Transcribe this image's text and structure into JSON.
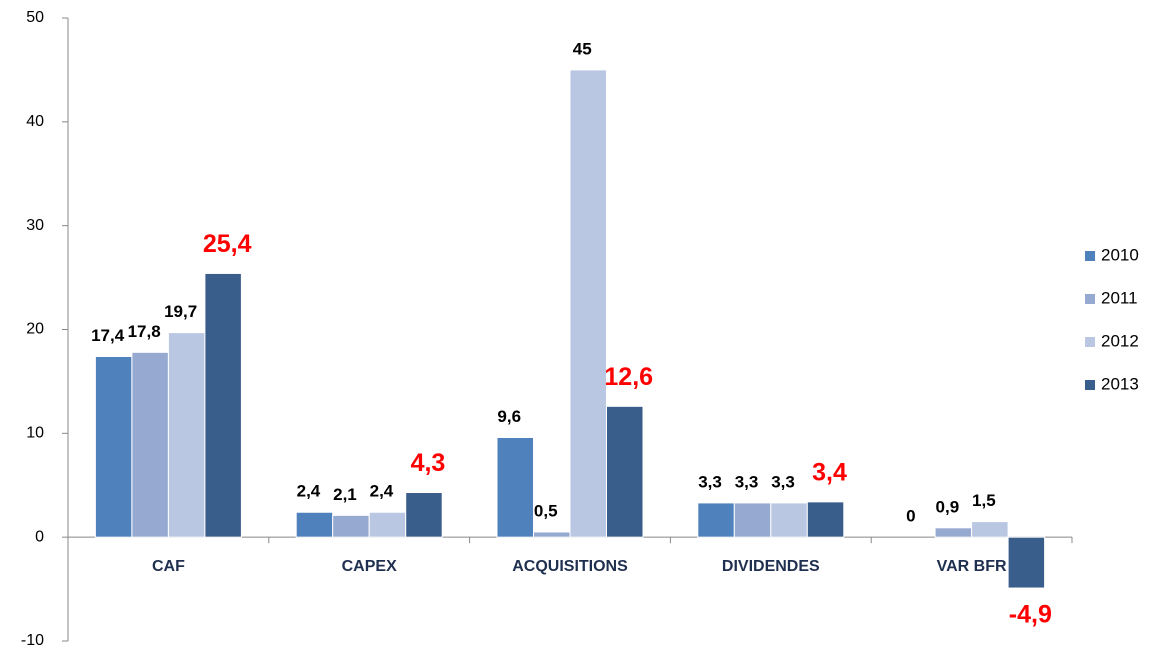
{
  "chart_data": {
    "type": "bar",
    "categories": [
      "CAF",
      "CAPEX",
      "ACQUISITIONS",
      "DIVIDENDES",
      "VAR BFR"
    ],
    "series": [
      {
        "name": "2010",
        "color": "#4f81bd",
        "label_color": "#000000",
        "values": [
          17.4,
          2.4,
          9.6,
          3.3,
          0
        ],
        "value_labels": [
          "17,4",
          "2,4",
          "9,6",
          "3,3",
          "0"
        ]
      },
      {
        "name": "2011",
        "color": "#95a9d1",
        "label_color": "#000000",
        "values": [
          17.8,
          2.1,
          0.5,
          3.3,
          0.9
        ],
        "value_labels": [
          "17,8",
          "2,1",
          "0,5",
          "3,3",
          "0,9"
        ]
      },
      {
        "name": "2012",
        "color": "#b9c7e2",
        "label_color": "#000000",
        "values": [
          19.7,
          2.4,
          45,
          3.3,
          1.5
        ],
        "value_labels": [
          "19,7",
          "2,4",
          "45",
          "3,3",
          "1,5"
        ]
      },
      {
        "name": "2013",
        "color": "#3a5e8c",
        "label_color": "#ff0000",
        "values": [
          25.4,
          4.3,
          12.6,
          3.4,
          -4.9
        ],
        "value_labels": [
          "25,4",
          "4,3",
          "12,6",
          "3,4",
          "-4,9"
        ]
      }
    ],
    "ylim": [
      -10,
      50
    ],
    "yticks": [
      -10,
      0,
      10,
      20,
      30,
      40,
      50
    ],
    "grid": false,
    "legend": "right"
  }
}
